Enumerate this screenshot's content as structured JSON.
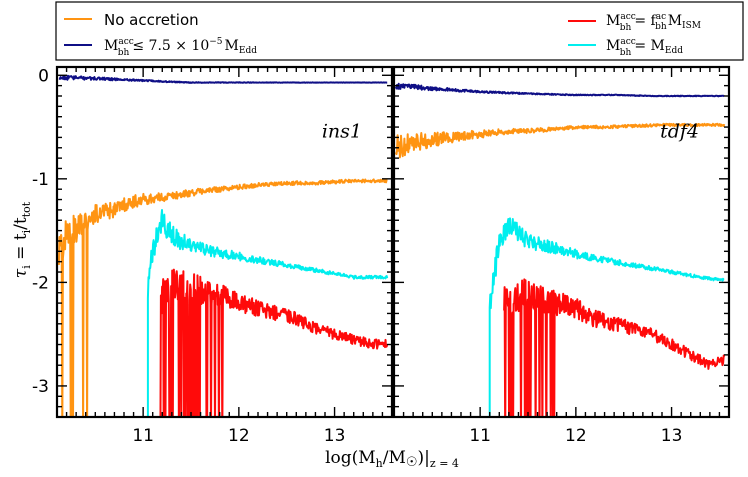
{
  "legend": {
    "no_accretion": "No accretion",
    "edd_limit": {
      "main": "M",
      "sub": "bh",
      "sup": "acc",
      "rel": "≤ 7.5 × 10",
      "exp": "−5",
      "tail": "M",
      "tail_sub": "Edd"
    },
    "fraction": {
      "main": "M",
      "sub": "bh",
      "sup": "acc",
      "rel": "= f",
      "f_sub": "bh",
      "f_sup": "ac",
      "tail": "M",
      "tail_sub": "ISM"
    },
    "eddington": {
      "main": "M",
      "sub": "bh",
      "sup": "acc",
      "rel": "= M",
      "tail_sub": "Edd"
    }
  },
  "axes": {
    "xlabel": {
      "pre": "log(M",
      "h_sub": "h",
      "mid": "/M",
      "sun": "☉",
      "post": ")|",
      "z_sub": "z = 4"
    },
    "ylabel": {
      "tau": "τ",
      "tau_sub": "i",
      "eq": " = t",
      "t_sub": "i",
      "slash": "/t",
      "tot_sub": "tot"
    }
  },
  "colors": {
    "no_accretion": "#ff9412",
    "edd_limit": "#0f0f86",
    "fraction": "#ff0a0a",
    "eddington": "#00eeee"
  },
  "chart_data": [
    {
      "type": "line",
      "panel_label": "ins1",
      "xlim": [
        10.1,
        13.6
      ],
      "ylim": [
        -3.3,
        0.08
      ],
      "xticks": [
        11,
        12,
        13
      ],
      "xtick_labels": [
        "11",
        "12",
        "13"
      ],
      "yticks": [
        0,
        -1,
        -2,
        -3
      ],
      "ytick_labels": [
        "0",
        "-1",
        "-2",
        "-3"
      ],
      "series": [
        {
          "name": "No accretion",
          "color": "#ff9412",
          "x": [
            10.12,
            10.2,
            10.3,
            10.4,
            10.5,
            10.6,
            10.7,
            10.8,
            10.9,
            11.0,
            11.2,
            11.4,
            11.6,
            11.8,
            12.0,
            12.2,
            12.4,
            12.6,
            12.8,
            13.0,
            13.2,
            13.4,
            13.55
          ],
          "y": [
            -1.75,
            -1.5,
            -1.5,
            -1.4,
            -1.35,
            -1.3,
            -1.3,
            -1.25,
            -1.22,
            -1.2,
            -1.18,
            -1.15,
            -1.12,
            -1.1,
            -1.08,
            -1.06,
            -1.05,
            -1.04,
            -1.04,
            -1.03,
            -1.02,
            -1.02,
            -1.02
          ],
          "noise": 0.18,
          "decay": 0.08
        },
        {
          "name": "M_bh^acc <= 7.5e-5 M_Edd",
          "color": "#0f0f86",
          "x": [
            10.12,
            10.5,
            11.0,
            11.2,
            11.5,
            12.0,
            12.5,
            13.0,
            13.55
          ],
          "y": [
            -0.02,
            -0.03,
            -0.05,
            -0.06,
            -0.07,
            -0.07,
            -0.07,
            -0.07,
            -0.07
          ],
          "noise": 0.025,
          "decay": 0.05
        },
        {
          "name": "M_bh^acc = f_bh^ac M_ISM",
          "color": "#ff0a0a",
          "x": [
            11.18,
            11.3,
            11.5,
            11.7,
            11.9,
            12.0,
            12.2,
            12.4,
            12.6,
            12.8,
            13.0,
            13.2,
            13.4,
            13.55
          ],
          "y": [
            -2.1,
            -2.0,
            -2.05,
            -2.1,
            -2.15,
            -2.2,
            -2.25,
            -2.3,
            -2.35,
            -2.45,
            -2.5,
            -2.55,
            -2.6,
            -2.6
          ],
          "noise": 0.22,
          "decay": 0.2
        },
        {
          "name": "M_bh^acc = M_Edd",
          "color": "#00eeee",
          "x": [
            11.05,
            11.1,
            11.2,
            11.3,
            11.5,
            11.7,
            12.0,
            12.3,
            12.6,
            12.9,
            13.2,
            13.55
          ],
          "y": [
            -2.1,
            -1.7,
            -1.4,
            -1.55,
            -1.65,
            -1.7,
            -1.75,
            -1.8,
            -1.85,
            -1.9,
            -1.95,
            -1.95
          ],
          "noise": 0.14,
          "decay": 0.08
        }
      ]
    },
    {
      "type": "line",
      "panel_label": "tdf4",
      "xlim": [
        10.1,
        13.6
      ],
      "ylim": [
        -3.3,
        0.08
      ],
      "xticks": [
        11,
        12,
        13
      ],
      "xtick_labels": [
        "11",
        "12",
        "13"
      ],
      "yticks": [
        0,
        -1,
        -2,
        -3
      ],
      "ytick_labels": [
        "0",
        "-1",
        "-2",
        "-3"
      ],
      "series": [
        {
          "name": "No accretion",
          "color": "#ff9412",
          "x": [
            10.12,
            10.3,
            10.5,
            10.7,
            10.9,
            11.0,
            11.2,
            11.4,
            11.6,
            11.8,
            12.0,
            12.3,
            12.6,
            12.9,
            13.2,
            13.55
          ],
          "y": [
            -0.7,
            -0.65,
            -0.62,
            -0.6,
            -0.58,
            -0.57,
            -0.55,
            -0.54,
            -0.53,
            -0.52,
            -0.5,
            -0.5,
            -0.49,
            -0.48,
            -0.48,
            -0.48
          ],
          "noise": 0.12,
          "decay": 0.09
        },
        {
          "name": "M_bh^acc <= 7.5e-5 M_Edd",
          "color": "#0f0f86",
          "x": [
            10.12,
            10.4,
            10.7,
            11.0,
            11.3,
            11.6,
            12.0,
            12.4,
            12.8,
            13.2,
            13.55
          ],
          "y": [
            -0.1,
            -0.12,
            -0.14,
            -0.16,
            -0.17,
            -0.18,
            -0.19,
            -0.19,
            -0.2,
            -0.2,
            -0.2
          ],
          "noise": 0.03,
          "decay": 0.1
        },
        {
          "name": "M_bh^acc = f_bh^ac M_ISM",
          "color": "#ff0a0a",
          "x": [
            11.25,
            11.4,
            11.6,
            11.8,
            12.0,
            12.2,
            12.4,
            12.6,
            12.8,
            13.0,
            13.2,
            13.4,
            13.55
          ],
          "y": [
            -2.2,
            -2.1,
            -2.15,
            -2.2,
            -2.25,
            -2.35,
            -2.4,
            -2.45,
            -2.5,
            -2.6,
            -2.7,
            -2.8,
            -2.75
          ],
          "noise": 0.22,
          "decay": 0.2
        },
        {
          "name": "M_bh^acc = M_Edd",
          "color": "#00eeee",
          "x": [
            11.1,
            11.2,
            11.3,
            11.5,
            11.7,
            11.9,
            12.1,
            12.4,
            12.7,
            13.0,
            13.3,
            13.55
          ],
          "y": [
            -2.2,
            -1.6,
            -1.45,
            -1.6,
            -1.65,
            -1.7,
            -1.75,
            -1.8,
            -1.85,
            -1.9,
            -1.95,
            -1.98
          ],
          "noise": 0.14,
          "decay": 0.08
        }
      ]
    }
  ]
}
